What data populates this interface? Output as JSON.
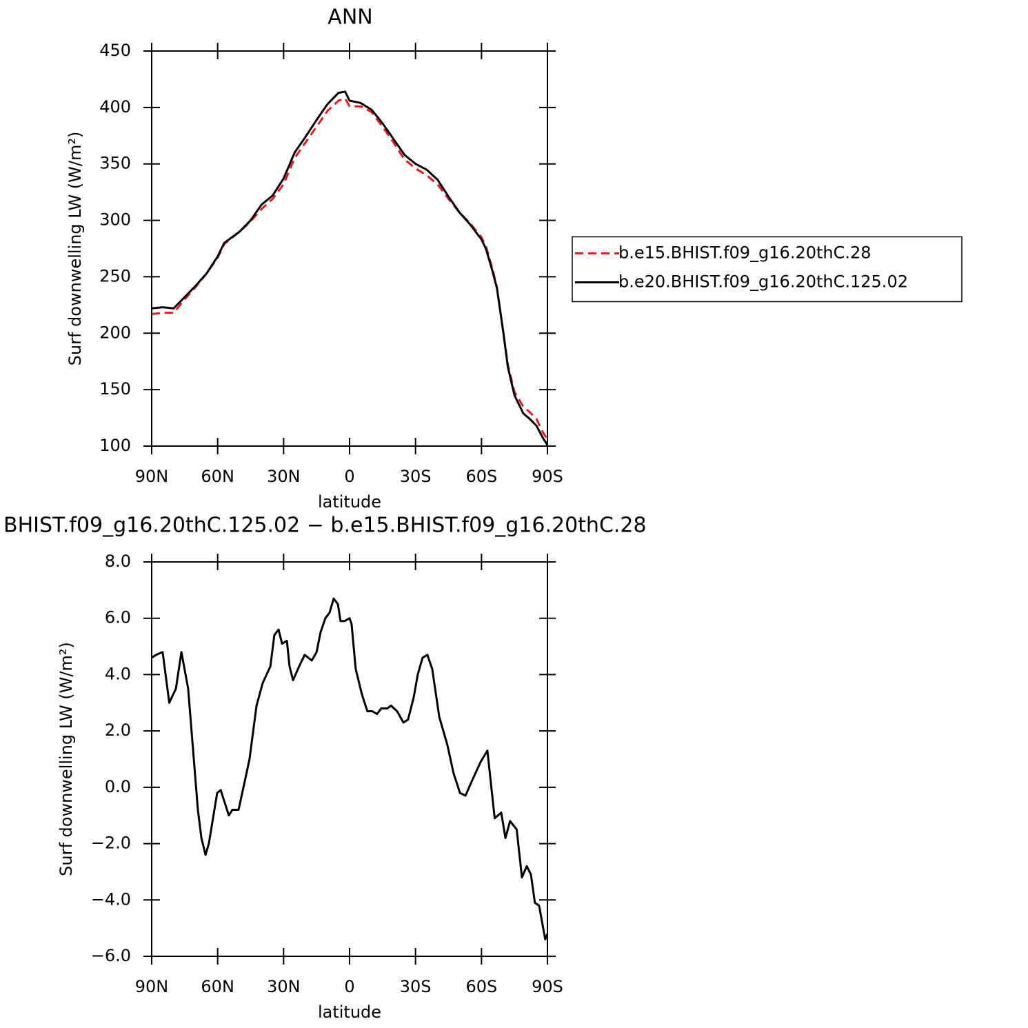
{
  "chart_data": [
    {
      "type": "line",
      "title": "ANN",
      "xlabel": "latitude",
      "ylabel": "Surf downwelling LW (W/m²)",
      "x": [
        90,
        85,
        80,
        75,
        70,
        65,
        60,
        57,
        50,
        45,
        40,
        35,
        30,
        25,
        20,
        15,
        10,
        5,
        2,
        0,
        -5,
        -10,
        -15,
        -20,
        -25,
        -30,
        -35,
        -40,
        -45,
        -50,
        -55,
        -60,
        -62,
        -65,
        -67,
        -70,
        -72,
        -75,
        -79,
        -82,
        -85,
        -88,
        -90
      ],
      "series": [
        {
          "name": "b.e15.BHIST.f09_g16.20thC.28",
          "color": "#e41a1c",
          "dashed": true,
          "values": [
            217,
            218,
            218,
            230,
            241,
            253,
            267,
            279,
            290,
            299,
            310,
            319,
            332,
            355,
            369,
            383,
            397,
            406,
            408,
            401,
            401,
            396,
            383,
            369,
            354,
            346,
            340,
            332,
            319,
            307,
            297,
            285,
            277,
            257,
            241,
            200,
            172,
            148,
            135,
            130,
            124,
            112,
            106
          ]
        },
        {
          "name": "b.e20.BHIST.f09_g16.20thC.125.02",
          "color": "#000000",
          "dashed": false,
          "values": [
            222,
            223,
            222,
            232,
            242,
            253,
            268,
            280,
            290,
            300,
            314,
            322,
            337,
            360,
            374,
            389,
            403,
            413,
            414,
            406,
            404,
            398,
            386,
            372,
            358,
            350,
            345,
            336,
            321,
            307,
            296,
            283,
            275,
            255,
            240,
            200,
            170,
            145,
            129,
            124,
            118,
            107,
            101
          ]
        }
      ],
      "xlim": [
        90,
        -90
      ],
      "xticks": [
        {
          "value": 90,
          "label": "90N"
        },
        {
          "value": 60,
          "label": "60N"
        },
        {
          "value": 30,
          "label": "30N"
        },
        0,
        {
          "value": -30,
          "label": "30S"
        },
        {
          "value": -60,
          "label": "60S"
        },
        {
          "value": -90,
          "label": "90S"
        }
      ],
      "ylim": [
        100,
        450
      ],
      "yticks": [
        100,
        150,
        200,
        250,
        300,
        350,
        400,
        450
      ],
      "legend": "right"
    },
    {
      "type": "line",
      "title": "BHIST.f09_g16.20thC.125.02 − b.e15.BHIST.f09_g16.20thC.28",
      "xlabel": "latitude",
      "ylabel": "Surf downwelling LW (W/m²)",
      "x": [
        90,
        88,
        85,
        82,
        79,
        76.5,
        73.4,
        69,
        67.4,
        65.5,
        64,
        60.2,
        58.6,
        54.9,
        53.3,
        50.5,
        47.4,
        45.5,
        42.3,
        39.5,
        36,
        34.2,
        32.3,
        30.7,
        28.5,
        27.3,
        25.7,
        22.9,
        20.4,
        17.2,
        15,
        13.2,
        11,
        9.1,
        7.2,
        5.3,
        4.1,
        2.3,
        0,
        -0.9,
        -2.8,
        -5.6,
        -8.1,
        -10.3,
        -12.5,
        -14.4,
        -17.2,
        -18.8,
        -21.6,
        -24.5,
        -26.6,
        -29.2,
        -31,
        -33.2,
        -35.4,
        -37.6,
        -40.8,
        -44.5,
        -47.3,
        -50.2,
        -52.7,
        -55.5,
        -59.6,
        -62.7,
        -66,
        -69,
        -70.9,
        -73,
        -76,
        -78.4,
        -80.6,
        -82.5,
        -84.3,
        -86.2,
        -89,
        -90
      ],
      "values": [
        4.6,
        4.7,
        4.8,
        3.0,
        3.5,
        4.8,
        3.5,
        -0.8,
        -1.8,
        -2.4,
        -2.0,
        -0.2,
        -0.1,
        -1.0,
        -0.8,
        -0.8,
        0.3,
        1.0,
        2.9,
        3.7,
        4.3,
        5.4,
        5.6,
        5.1,
        5.2,
        4.3,
        3.8,
        4.3,
        4.7,
        4.5,
        4.8,
        5.5,
        6.0,
        6.2,
        6.7,
        6.5,
        5.9,
        5.9,
        6.0,
        5.8,
        4.2,
        3.3,
        2.7,
        2.7,
        2.6,
        2.8,
        2.8,
        2.9,
        2.7,
        2.3,
        2.4,
        3.2,
        4.0,
        4.6,
        4.7,
        4.2,
        2.5,
        1.5,
        0.5,
        -0.2,
        -0.3,
        0.2,
        0.9,
        1.3,
        -1.1,
        -0.9,
        -1.8,
        -1.2,
        -1.5,
        -3.2,
        -2.8,
        -3.1,
        -4.1,
        -4.2,
        -5.4,
        -5.2
      ],
      "color": "#000000",
      "xlim": [
        90,
        -90
      ],
      "xticks": [
        {
          "value": 90,
          "label": "90N"
        },
        {
          "value": 60,
          "label": "60N"
        },
        {
          "value": 30,
          "label": "30N"
        },
        0,
        {
          "value": -30,
          "label": "30S"
        },
        {
          "value": -60,
          "label": "60S"
        },
        {
          "value": -90,
          "label": "90S"
        }
      ],
      "ylim": [
        -6,
        8
      ],
      "yticks": [
        {
          "value": -6,
          "label": "−6.0"
        },
        {
          "value": -4,
          "label": "−4.0"
        },
        {
          "value": -2,
          "label": "−2.0"
        },
        {
          "value": 0,
          "label": "0.0"
        },
        {
          "value": 2,
          "label": "2.0"
        },
        {
          "value": 4,
          "label": "4.0"
        },
        {
          "value": 6,
          "label": "6.0"
        },
        {
          "value": 8,
          "label": "8.0"
        }
      ]
    }
  ]
}
